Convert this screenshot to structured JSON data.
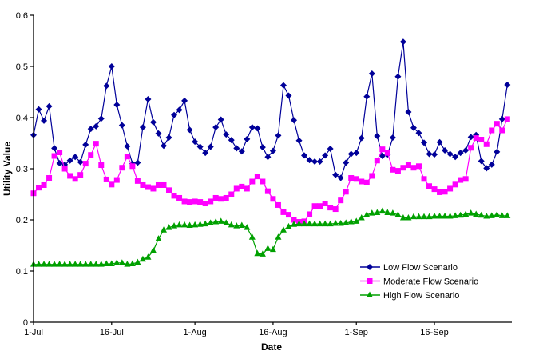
{
  "chart_data": {
    "type": "line",
    "title": "",
    "xlabel": "Date",
    "ylabel": "Utility Value",
    "ylim": [
      0,
      0.6
    ],
    "yticks": [
      "0",
      "0.1",
      "0.2",
      "0.3",
      "0.4",
      "0.5",
      "0.6"
    ],
    "ytick_values": [
      0,
      0.1,
      0.2,
      0.3,
      0.4,
      0.5,
      0.6
    ],
    "x_start": "1-Jul",
    "x_end": "30-Sep",
    "xticks": [
      {
        "label": "1-Jul",
        "day": 0
      },
      {
        "label": "16-Jul",
        "day": 15
      },
      {
        "label": "1-Aug",
        "day": 31
      },
      {
        "label": "16-Aug",
        "day": 46
      },
      {
        "label": "1-Sep",
        "day": 62
      },
      {
        "label": "16-Sep",
        "day": 77
      }
    ],
    "grid": false,
    "legend_position": "bottom-right",
    "series": [
      {
        "name": "Low Flow Scenario",
        "color": "#000099",
        "marker": "diamond",
        "values": [
          0.366,
          0.416,
          0.394,
          0.422,
          0.34,
          0.311,
          0.308,
          0.316,
          0.323,
          0.313,
          0.347,
          0.378,
          0.383,
          0.398,
          0.462,
          0.5,
          0.425,
          0.385,
          0.344,
          0.31,
          0.312,
          0.381,
          0.436,
          0.391,
          0.369,
          0.345,
          0.361,
          0.405,
          0.415,
          0.433,
          0.376,
          0.353,
          0.343,
          0.331,
          0.343,
          0.381,
          0.396,
          0.367,
          0.356,
          0.34,
          0.334,
          0.358,
          0.381,
          0.379,
          0.342,
          0.323,
          0.335,
          0.365,
          0.463,
          0.443,
          0.395,
          0.355,
          0.326,
          0.317,
          0.314,
          0.314,
          0.326,
          0.339,
          0.288,
          0.282,
          0.312,
          0.329,
          0.331,
          0.36,
          0.441,
          0.486,
          0.364,
          0.325,
          0.328,
          0.361,
          0.48,
          0.548,
          0.411,
          0.38,
          0.37,
          0.351,
          0.329,
          0.328,
          0.352,
          0.336,
          0.329,
          0.323,
          0.331,
          0.336,
          0.362,
          0.366,
          0.315,
          0.301,
          0.308,
          0.333,
          0.397,
          0.464
        ]
      },
      {
        "name": "Moderate Flow Scenario",
        "color": "#FF00FF",
        "marker": "square",
        "values": [
          0.252,
          0.263,
          0.268,
          0.282,
          0.325,
          0.332,
          0.3,
          0.286,
          0.28,
          0.288,
          0.31,
          0.327,
          0.349,
          0.307,
          0.279,
          0.269,
          0.278,
          0.302,
          0.324,
          0.305,
          0.276,
          0.268,
          0.264,
          0.261,
          0.268,
          0.268,
          0.258,
          0.247,
          0.243,
          0.236,
          0.235,
          0.236,
          0.235,
          0.232,
          0.236,
          0.243,
          0.241,
          0.243,
          0.25,
          0.261,
          0.265,
          0.261,
          0.275,
          0.285,
          0.275,
          0.256,
          0.241,
          0.229,
          0.215,
          0.21,
          0.2,
          0.196,
          0.197,
          0.211,
          0.227,
          0.227,
          0.232,
          0.224,
          0.221,
          0.238,
          0.255,
          0.282,
          0.28,
          0.275,
          0.273,
          0.286,
          0.316,
          0.338,
          0.331,
          0.298,
          0.296,
          0.302,
          0.307,
          0.302,
          0.305,
          0.28,
          0.266,
          0.26,
          0.254,
          0.255,
          0.261,
          0.269,
          0.278,
          0.28,
          0.341,
          0.36,
          0.357,
          0.348,
          0.375,
          0.388,
          0.375,
          0.397
        ]
      },
      {
        "name": "High Flow Scenario",
        "color": "#00A000",
        "marker": "triangle",
        "values": [
          0.113,
          0.113,
          0.113,
          0.113,
          0.113,
          0.113,
          0.113,
          0.113,
          0.113,
          0.113,
          0.113,
          0.113,
          0.113,
          0.113,
          0.114,
          0.114,
          0.116,
          0.116,
          0.113,
          0.114,
          0.117,
          0.123,
          0.127,
          0.14,
          0.163,
          0.18,
          0.185,
          0.188,
          0.19,
          0.19,
          0.189,
          0.19,
          0.191,
          0.192,
          0.194,
          0.196,
          0.197,
          0.194,
          0.19,
          0.188,
          0.189,
          0.185,
          0.166,
          0.134,
          0.133,
          0.144,
          0.142,
          0.166,
          0.18,
          0.187,
          0.191,
          0.192,
          0.192,
          0.192,
          0.192,
          0.192,
          0.192,
          0.192,
          0.193,
          0.193,
          0.194,
          0.196,
          0.197,
          0.204,
          0.21,
          0.213,
          0.214,
          0.217,
          0.214,
          0.213,
          0.21,
          0.204,
          0.204,
          0.206,
          0.206,
          0.206,
          0.206,
          0.207,
          0.207,
          0.207,
          0.207,
          0.208,
          0.209,
          0.211,
          0.213,
          0.211,
          0.209,
          0.207,
          0.208,
          0.21,
          0.208,
          0.208
        ]
      }
    ]
  }
}
